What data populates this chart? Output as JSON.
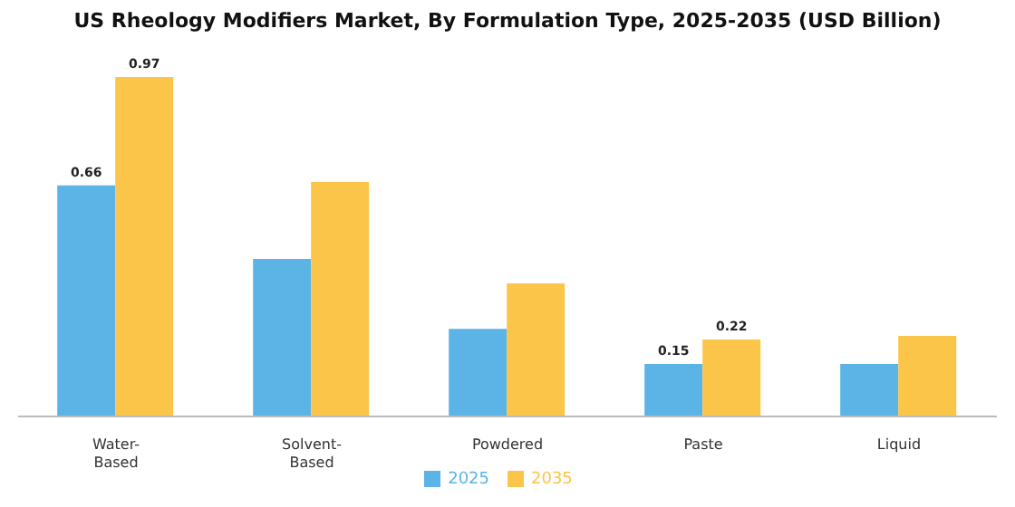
{
  "chart_data": {
    "type": "bar",
    "title": "US Rheology Modifiers Market, By Formulation Type, 2025-2035 (USD Billion)",
    "categories": [
      "Water-Based",
      "Solvent-Based",
      "Powdered",
      "Paste",
      "Liquid"
    ],
    "series": [
      {
        "name": "2025",
        "color": "#5bb3e6",
        "values": [
          0.66,
          0.45,
          0.25,
          0.15,
          0.15
        ],
        "value_labels": [
          "0.66",
          null,
          null,
          "0.15",
          null
        ]
      },
      {
        "name": "2035",
        "color": "#fbc54a",
        "values": [
          0.97,
          0.67,
          0.38,
          0.22,
          0.23
        ],
        "value_labels": [
          "0.97",
          null,
          null,
          "0.22",
          null
        ]
      }
    ],
    "legend": "bottom",
    "grid": false
  }
}
